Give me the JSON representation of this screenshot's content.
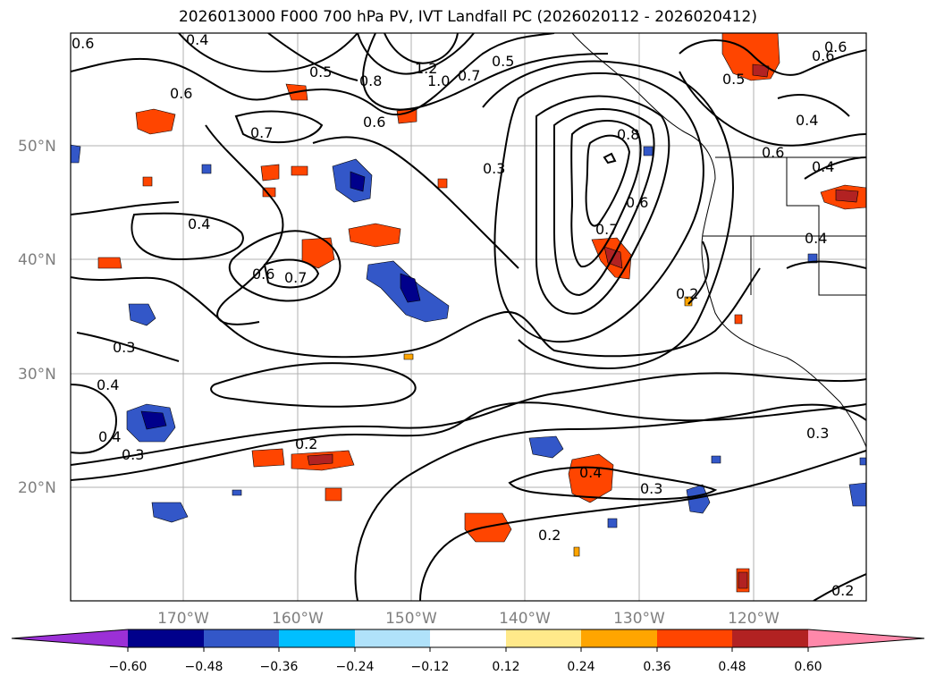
{
  "title": "2026013000 F000 700 hPa PV, IVT Landfall PC (2026020112 - 2026020412)",
  "lat_labels": [
    "50°N",
    "40°N",
    "30°N",
    "20°N"
  ],
  "lon_labels": [
    "170°W",
    "160°W",
    "150°W",
    "140°W",
    "130°W",
    "120°W"
  ],
  "contour_labels": [
    "0.6",
    "0.4",
    "0.5",
    "0.8",
    "1.2",
    "1.0",
    "0.7",
    "0.5",
    "0.6",
    "0.5",
    "0.6",
    "0.4",
    "0.7",
    "0.6",
    "0.8",
    "0.6",
    "0.3",
    "0.4",
    "0.4",
    "0.6",
    "0.7",
    "0.6",
    "0.7",
    "0.2",
    "0.3",
    "0.4",
    "0.4",
    "0.3",
    "0.2",
    "0.4",
    "0.3",
    "0.3",
    "0.2",
    "0.2",
    "0.6",
    "0.4"
  ],
  "colorbar": {
    "ticks": [
      "−0.60",
      "−0.48",
      "−0.36",
      "−0.24",
      "−0.12",
      "0.12",
      "0.24",
      "0.36",
      "0.48",
      "0.60"
    ],
    "colors": [
      "#9b30d6",
      "#00008b",
      "#3357c8",
      "#00bfff",
      "#b0e2fa",
      "#ffffff",
      "#ffe98a",
      "#ffa500",
      "#ff4500",
      "#b22222",
      "#ff88aa"
    ]
  }
}
